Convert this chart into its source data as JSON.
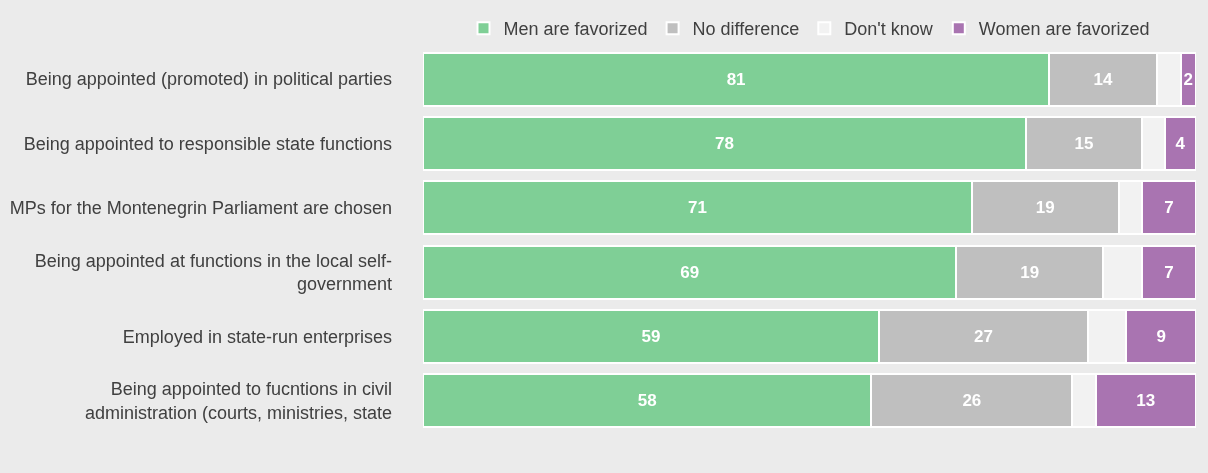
{
  "chart_data": {
    "type": "bar",
    "orientation": "horizontal",
    "stacked": true,
    "xlim": [
      0,
      100
    ],
    "tick_labels": "y",
    "legend": "top",
    "categories": [
      "Being appointed (promoted) in political parties",
      "Being appointed to responsible state functions",
      "MPs for the Montenegrin Parliament are chosen",
      "Being appointed at functions in the local self-government",
      "Employed in state-run enterprises",
      "Being appointed to fucntions in civil administration (courts, ministries, state"
    ],
    "series": [
      {
        "name": "Men are favorized",
        "color": "#7fcf96",
        "values": [
          81,
          78,
          71,
          69,
          59,
          58
        ],
        "value_labels": [
          "81",
          "78",
          "71",
          "69",
          "59",
          "58"
        ]
      },
      {
        "name": "No difference",
        "color": "#bfbfbf",
        "values": [
          14,
          15,
          19,
          19,
          27,
          26
        ],
        "value_labels": [
          "14",
          "15",
          "19",
          "19",
          "27",
          "26"
        ]
      },
      {
        "name": "Don't know",
        "color": "#f2f2f2",
        "values": [
          3,
          3,
          3,
          5,
          5,
          3
        ],
        "value_labels": [
          null,
          null,
          null,
          null,
          null,
          null
        ]
      },
      {
        "name": "Women are favorized",
        "color": "#a974b1",
        "values": [
          2,
          4,
          7,
          7,
          9,
          13
        ],
        "value_labels": [
          "2",
          "4",
          "7",
          "7",
          "9",
          "13"
        ]
      }
    ]
  }
}
